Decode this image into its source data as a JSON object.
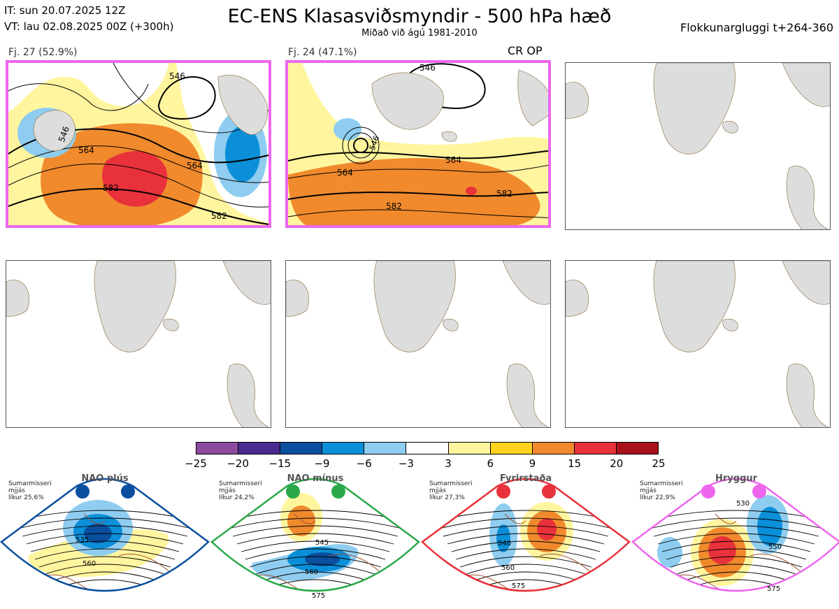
{
  "header": {
    "it_line": "IT: sun 20.07.2025 12Z",
    "vt_line": "VT: lau 02.08.2025 00Z  (+300h)",
    "title": "EC-ENS Klasasviðsmyndir - 500 hPa hæð",
    "subtitle": "Miðað við ágú 1981-2010",
    "window": "Flokkunargluggi t+264-360"
  },
  "panels": [
    {
      "caption": "Fj. 27 (52.9%)",
      "labels": [
        "546",
        "546",
        "564",
        "564",
        "582",
        "582"
      ],
      "highlight": true
    },
    {
      "caption": "Fj. 24 (47.1%)",
      "extra": "CR OP",
      "labels": [
        "546",
        "546",
        "564",
        "564",
        "582",
        "582"
      ],
      "highlight": true
    },
    {
      "caption": "",
      "highlight": false
    },
    {
      "caption": "",
      "highlight": false
    },
    {
      "caption": "",
      "highlight": false
    },
    {
      "caption": "",
      "highlight": false
    }
  ],
  "colorbar": {
    "colors": [
      "#8b4a9b",
      "#4a2a8e",
      "#0a4f9e",
      "#0a8fd8",
      "#8fcdf0",
      "#ffffff",
      "#fff59e",
      "#ffd21f",
      "#f08a2d",
      "#e8313a",
      "#a8101a"
    ],
    "ticks": [
      "−25",
      "−20",
      "−15",
      "−9",
      "−6",
      "−3",
      "3",
      "6",
      "9",
      "15",
      "20",
      "25"
    ]
  },
  "regimes": [
    {
      "name": "NAO plús",
      "season": "Sumarmisseri",
      "mean": "mjjás",
      "prob": "líkur 25,6%",
      "color": "#0a4f9e",
      "labels": [
        "535",
        "560"
      ]
    },
    {
      "name": "NAO mínus",
      "season": "Sumarmisseri",
      "mean": "mjjás",
      "prob": "líkur 24,2%",
      "color": "#2aa84a",
      "labels": [
        "545",
        "560",
        "575"
      ]
    },
    {
      "name": "Fyrirstaða",
      "season": "Sumarmisseri",
      "mean": "mjjás",
      "prob": "líkur 27,3%",
      "color": "#e8313a",
      "labels": [
        "540",
        "560",
        "575"
      ]
    },
    {
      "name": "Hryggur",
      "season": "Sumarmisseri",
      "mean": "mjjás",
      "prob": "líkur 22,9%",
      "color": "#ee66ee",
      "labels": [
        "530",
        "550",
        "575"
      ]
    }
  ]
}
